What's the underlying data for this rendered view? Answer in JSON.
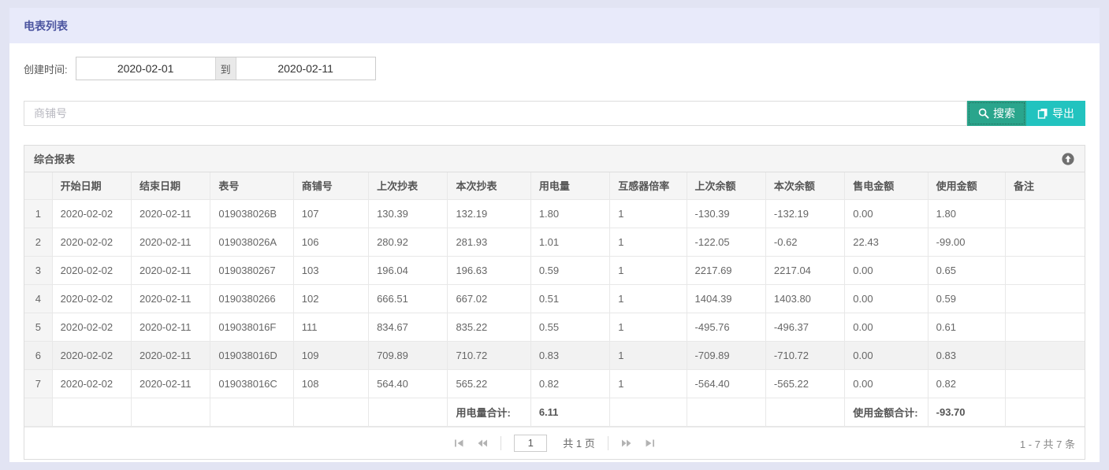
{
  "page": {
    "title": "电表列表"
  },
  "filter": {
    "label": "创建时间:",
    "start_date": "2020-02-01",
    "separator": "到",
    "end_date": "2020-02-11"
  },
  "search": {
    "placeholder": "商铺号",
    "search_button": "搜索",
    "export_button": "导出"
  },
  "colors": {
    "search_button_bg": "#2aa58c",
    "export_button_bg": "#22c3bf",
    "title_bar_bg": "#e8eafa",
    "page_bg": "#e2e4f3"
  },
  "icons": {
    "search_icon": "magnifier",
    "export_icon": "copy-pages",
    "collapse_icon": "arrow-up-circle",
    "pager_icons": [
      "first-page",
      "prev-page",
      "next-page",
      "last-page"
    ]
  },
  "panel": {
    "title": "综合报表"
  },
  "table": {
    "columns": [
      "",
      "开始日期",
      "结束日期",
      "表号",
      "商铺号",
      "上次抄表",
      "本次抄表",
      "用电量",
      "互感器倍率",
      "上次余额",
      "本次余额",
      "售电金额",
      "使用金额",
      "备注"
    ],
    "rows": [
      [
        "1",
        "2020-02-02",
        "2020-02-11",
        "019038026B",
        "107",
        "130.39",
        "132.19",
        "1.80",
        "1",
        "-130.39",
        "-132.19",
        "0.00",
        "1.80",
        ""
      ],
      [
        "2",
        "2020-02-02",
        "2020-02-11",
        "019038026A",
        "106",
        "280.92",
        "281.93",
        "1.01",
        "1",
        "-122.05",
        "-0.62",
        "22.43",
        "-99.00",
        ""
      ],
      [
        "3",
        "2020-02-02",
        "2020-02-11",
        "0190380267",
        "103",
        "196.04",
        "196.63",
        "0.59",
        "1",
        "2217.69",
        "2217.04",
        "0.00",
        "0.65",
        ""
      ],
      [
        "4",
        "2020-02-02",
        "2020-02-11",
        "0190380266",
        "102",
        "666.51",
        "667.02",
        "0.51",
        "1",
        "1404.39",
        "1403.80",
        "0.00",
        "0.59",
        ""
      ],
      [
        "5",
        "2020-02-02",
        "2020-02-11",
        "019038016F",
        "111",
        "834.67",
        "835.22",
        "0.55",
        "1",
        "-495.76",
        "-496.37",
        "0.00",
        "0.61",
        ""
      ],
      [
        "6",
        "2020-02-02",
        "2020-02-11",
        "019038016D",
        "109",
        "709.89",
        "710.72",
        "0.83",
        "1",
        "-709.89",
        "-710.72",
        "0.00",
        "0.83",
        ""
      ],
      [
        "7",
        "2020-02-02",
        "2020-02-11",
        "019038016C",
        "108",
        "564.40",
        "565.22",
        "0.82",
        "1",
        "-564.40",
        "-565.22",
        "0.00",
        "0.82",
        ""
      ]
    ],
    "highlighted_row_index": 5,
    "summary": {
      "usage_total_label": "用电量合计:",
      "usage_total_value": "6.11",
      "usage_label_col": 6,
      "usage_value_col": 7,
      "amount_total_label": "使用金额合计:",
      "amount_total_value": "-93.70",
      "amount_label_col": 11,
      "amount_value_col": 12
    }
  },
  "pagination": {
    "page_value": "1",
    "total_pages_label": "共 1 页",
    "range_label": "1 - 7  共 7 条"
  }
}
